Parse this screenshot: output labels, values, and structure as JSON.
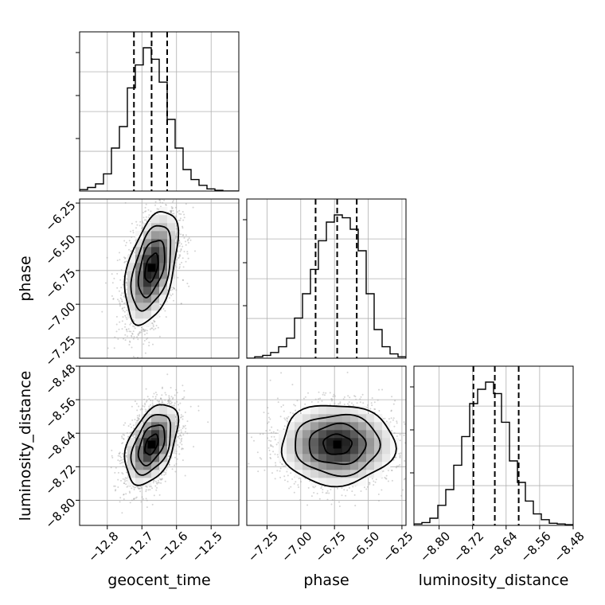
{
  "chart_data": {
    "type": "corner",
    "parameters": [
      "geocent_time",
      "phase",
      "luminosity_distance"
    ],
    "axes": {
      "geocent_time": {
        "range": [
          -12.88,
          -12.42
        ],
        "ticks": [
          -12.8,
          -12.7,
          -12.6,
          -12.5
        ],
        "tick_labels": [
          "−12.8",
          "−12.7",
          "−12.6",
          "−12.5"
        ],
        "label": "geocent_time"
      },
      "phase": {
        "range": [
          -7.4,
          -6.22
        ],
        "ticks": [
          -7.25,
          -7.0,
          -6.75,
          -6.5,
          -6.25
        ],
        "tick_labels": [
          "−7.25",
          "−7.00",
          "−6.75",
          "−6.50",
          "−6.25"
        ],
        "label": "phase"
      },
      "luminosity_distance": {
        "range": [
          -8.86,
          -8.48
        ],
        "ticks": [
          -8.8,
          -8.72,
          -8.64,
          -8.56,
          -8.48
        ],
        "tick_labels": [
          "−8.80",
          "−8.72",
          "−8.64",
          "−8.56",
          "−8.48"
        ],
        "label": "luminosity_distance"
      }
    },
    "marginals": [
      {
        "parameter": "geocent_time",
        "bin_edges": [
          -12.88,
          -12.857,
          -12.834,
          -12.811,
          -12.788,
          -12.765,
          -12.742,
          -12.719,
          -12.696,
          -12.673,
          -12.65,
          -12.627,
          -12.604,
          -12.581,
          -12.558,
          -12.535,
          -12.512,
          -12.489,
          -12.466,
          -12.443,
          -12.42
        ],
        "counts": [
          0.01,
          0.025,
          0.05,
          0.12,
          0.3,
          0.45,
          0.72,
          0.88,
          1.0,
          0.92,
          0.76,
          0.5,
          0.3,
          0.15,
          0.08,
          0.04,
          0.015,
          0.005,
          0.0,
          0.0
        ],
        "quantiles": [
          -12.723,
          -12.672,
          -12.627
        ]
      },
      {
        "parameter": "phase",
        "bin_edges": [
          -7.4,
          -7.341,
          -7.282,
          -7.223,
          -7.164,
          -7.105,
          -7.046,
          -6.987,
          -6.928,
          -6.869,
          -6.81,
          -6.751,
          -6.692,
          -6.633,
          -6.574,
          -6.515,
          -6.456,
          -6.397,
          -6.338,
          -6.279,
          -6.22
        ],
        "counts": [
          0.0,
          0.01,
          0.02,
          0.04,
          0.08,
          0.14,
          0.28,
          0.45,
          0.62,
          0.82,
          0.95,
          1.0,
          0.98,
          0.9,
          0.75,
          0.45,
          0.2,
          0.08,
          0.03,
          0.01
        ],
        "quantiles": [
          -6.89,
          -6.73,
          -6.585
        ]
      },
      {
        "parameter": "luminosity_distance",
        "bin_edges": [
          -8.86,
          -8.841,
          -8.822,
          -8.803,
          -8.784,
          -8.765,
          -8.746,
          -8.727,
          -8.708,
          -8.689,
          -8.67,
          -8.651,
          -8.632,
          -8.613,
          -8.594,
          -8.575,
          -8.556,
          -8.537,
          -8.518,
          -8.499,
          -8.48
        ],
        "counts": [
          0.01,
          0.02,
          0.05,
          0.14,
          0.25,
          0.42,
          0.62,
          0.85,
          0.95,
          1.0,
          0.92,
          0.72,
          0.45,
          0.3,
          0.17,
          0.08,
          0.04,
          0.015,
          0.01,
          0.005
        ],
        "quantiles": [
          -8.718,
          -8.667,
          -8.61
        ]
      }
    ],
    "joint": [
      {
        "x": "geocent_time",
        "y": "phase",
        "mean": [
          -12.672,
          -6.73
        ],
        "sd": [
          0.038,
          0.21
        ],
        "correlation": 0.45
      },
      {
        "x": "geocent_time",
        "y": "luminosity_distance",
        "mean": [
          -12.672,
          -8.667
        ],
        "sd": [
          0.038,
          0.048
        ],
        "correlation": 0.45
      },
      {
        "x": "phase",
        "y": "luminosity_distance",
        "mean": [
          -6.73,
          -8.667
        ],
        "sd": [
          0.21,
          0.048
        ],
        "correlation": 0.0
      }
    ],
    "contour_levels": [
      0.5,
      1.0,
      1.5,
      2.0
    ],
    "grid": true,
    "colors": {
      "line": "#000000",
      "grid": "#b0b0b0",
      "points": "#a0a0a0"
    }
  }
}
